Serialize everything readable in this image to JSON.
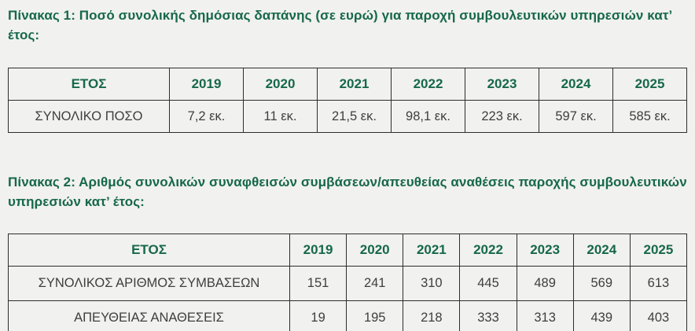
{
  "page": {
    "background": "#f1f1ef"
  },
  "colors": {
    "title_green": "#16684a",
    "header_green": "#16684a",
    "body_text": "#3e3e3e",
    "table_border": "#2d2d2d"
  },
  "table1": {
    "title": "Πίνακας 1: Ποσό συνολικής δημόσιας δαπάνης (σε ευρώ) για παροχή συμβουλευτικών υπηρεσιών κατ’ έτος:",
    "header": [
      "ΕΤΟΣ",
      "2019",
      "2020",
      "2021",
      "2022",
      "2023",
      "2024",
      "2025"
    ],
    "rows": [
      {
        "label": "ΣΥΝΟΛΙΚΟ ΠΟΣΟ",
        "values": [
          "7,2 εκ.",
          "11 εκ.",
          "21,5 εκ.",
          "98,1 εκ.",
          "223 εκ.",
          "597 εκ.",
          "585 εκ."
        ]
      }
    ]
  },
  "table2": {
    "title": "Πίνακας 2: Αριθμός συνολικών συναφθεισών συμβάσεων/απευθείας αναθέσεις παροχής συμβουλευτικών υπηρεσιών κατ’ έτος:",
    "header": [
      "ΕΤΟΣ",
      "2019",
      "2020",
      "2021",
      "2022",
      "2023",
      "2024",
      "2025"
    ],
    "rows": [
      {
        "label": "ΣΥΝΟΛΙΚΟΣ ΑΡΙΘΜΟΣ ΣΥΜΒΑΣΕΩΝ",
        "values": [
          "151",
          "241",
          "310",
          "445",
          "489",
          "569",
          "613"
        ]
      },
      {
        "label": "ΑΠΕΥΘΕΙΑΣ ΑΝΑΘΕΣΕΙΣ",
        "values": [
          "19",
          "195",
          "218",
          "333",
          "313",
          "439",
          "403"
        ]
      }
    ]
  },
  "chart_data": [
    {
      "type": "table",
      "title": "Πίνακας 1: Ποσό συνολικής δημόσιας δαπάνης (σε ευρώ) για παροχή συμβουλευτικών υπηρεσιών κατ’ έτος:",
      "categories": [
        "2019",
        "2020",
        "2021",
        "2022",
        "2023",
        "2024",
        "2025"
      ],
      "series": [
        {
          "name": "ΣΥΝΟΛΙΚΟ ΠΟΣΟ",
          "values": [
            "7,2 εκ.",
            "11 εκ.",
            "21,5 εκ.",
            "98,1 εκ.",
            "223 εκ.",
            "597 εκ.",
            "585 εκ."
          ]
        }
      ]
    },
    {
      "type": "table",
      "title": "Πίνακας 2: Αριθμός συνολικών συναφθεισών συμβάσεων/απευθείας αναθέσεις παροχής συμβουλευτικών υπηρεσιών κατ’ έτος:",
      "categories": [
        "2019",
        "2020",
        "2021",
        "2022",
        "2023",
        "2024",
        "2025"
      ],
      "series": [
        {
          "name": "ΣΥΝΟΛΙΚΟΣ ΑΡΙΘΜΟΣ ΣΥΜΒΑΣΕΩΝ",
          "values": [
            151,
            241,
            310,
            445,
            489,
            569,
            613
          ]
        },
        {
          "name": "ΑΠΕΥΘΕΙΑΣ ΑΝΑΘΕΣΕΙΣ",
          "values": [
            19,
            195,
            218,
            333,
            313,
            439,
            403
          ]
        }
      ]
    }
  ]
}
